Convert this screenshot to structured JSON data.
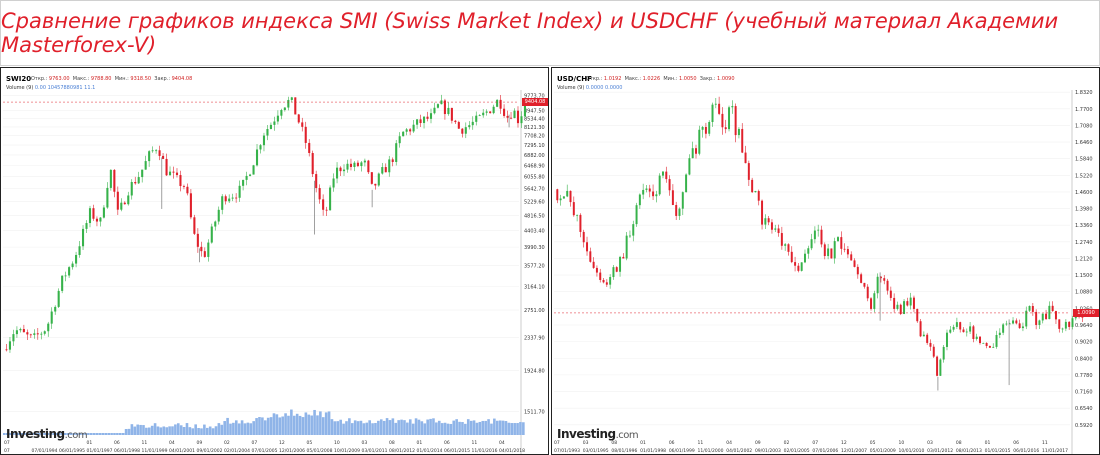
{
  "page_title": "Сравнение графиков индекса SMI (Swiss Market Index) и USDCHF (учебный материал Академии Masterforex-V)",
  "colors": {
    "title": "#e0202b",
    "up": "#36b24a",
    "down": "#e0202b",
    "volume": "#8fb4e8",
    "current_price": "#e0202b"
  },
  "logo": {
    "text": "Investing",
    "suffix": ".com"
  },
  "chart_data": [
    {
      "type": "candlestick",
      "symbol": "SWI20",
      "ohlc": {
        "open_label": "Откр.:",
        "open": "9763.00",
        "high_label": "Макс.:",
        "high": "9788.80",
        "low_label": "Мин.:",
        "low": "9318.50",
        "close_label": "Закр.:",
        "close": "9404.08"
      },
      "volume_label": "Volume (9)",
      "volume_values": "0.00   10457880981 11.1",
      "current_price": "9404.08",
      "y_scale": "log",
      "ylim": [
        1330,
        10100
      ],
      "y_ticks": [
        9773.7,
        8947.5,
        8534.4,
        8121.3,
        7708.2,
        7295.1,
        6882.0,
        6468.9,
        6055.8,
        5642.7,
        5229.6,
        4816.5,
        4403.4,
        3990.3,
        3577.2,
        3164.1,
        2751.0,
        2337.9,
        1924.8,
        1511.7
      ],
      "x_year_range": [
        1993,
        2019
      ],
      "x_tick_labels": [
        "07",
        "07/01/1994",
        "06/01/1995",
        "01/01/1997",
        "06/01/1998",
        "11/01/1999",
        "04/01/2001",
        "09/01/2002",
        "02/01/2004",
        "07/01/2005",
        "12/01/2006",
        "05/01/2008",
        "10/01/2009",
        "03/01/2011",
        "08/01/2012",
        "01/01/2014",
        "06/01/2015",
        "11/01/2016",
        "04/01/2018"
      ],
      "x_tick_top": [
        "07",
        "",
        "",
        "01",
        "06",
        "11",
        "04",
        "09",
        "02",
        "07",
        "12",
        "05",
        "10",
        "03",
        "08",
        "01",
        "06",
        "11",
        "04"
      ],
      "path": [
        [
          1993.0,
          2180
        ],
        [
          1993.6,
          2450
        ],
        [
          1994.5,
          2310
        ],
        [
          1995.2,
          2480
        ],
        [
          1996.0,
          3300
        ],
        [
          1996.6,
          3750
        ],
        [
          1997.4,
          4900
        ],
        [
          1997.9,
          4600
        ],
        [
          1998.4,
          6400
        ],
        [
          1998.8,
          4800
        ],
        [
          1999.3,
          5600
        ],
        [
          1999.9,
          6150
        ],
        [
          2000.4,
          6900
        ],
        [
          2000.8,
          7300
        ],
        [
          2001.2,
          6300
        ],
        [
          2001.8,
          5900
        ],
        [
          2002.2,
          5700
        ],
        [
          2002.6,
          4300
        ],
        [
          2003.1,
          3750
        ],
        [
          2003.6,
          4500
        ],
        [
          2004.1,
          5400
        ],
        [
          2004.6,
          5450
        ],
        [
          2005.0,
          5600
        ],
        [
          2005.6,
          6600
        ],
        [
          2006.1,
          7800
        ],
        [
          2006.6,
          8400
        ],
        [
          2007.0,
          9200
        ],
        [
          2007.5,
          9500
        ],
        [
          2007.9,
          8400
        ],
        [
          2008.3,
          7300
        ],
        [
          2008.8,
          5600
        ],
        [
          2009.2,
          4700
        ],
        [
          2009.7,
          6200
        ],
        [
          2010.2,
          6500
        ],
        [
          2010.7,
          6400
        ],
        [
          2011.2,
          6600
        ],
        [
          2011.6,
          5600
        ],
        [
          2012.1,
          6200
        ],
        [
          2012.6,
          6700
        ],
        [
          2013.1,
          7800
        ],
        [
          2013.6,
          8100
        ],
        [
          2014.1,
          8400
        ],
        [
          2014.6,
          8600
        ],
        [
          2015.0,
          9300
        ],
        [
          2015.5,
          8800
        ],
        [
          2016.0,
          8000
        ],
        [
          2016.5,
          8200
        ],
        [
          2017.0,
          8500
        ],
        [
          2017.5,
          9000
        ],
        [
          2018.0,
          9550
        ],
        [
          2018.4,
          8600
        ],
        [
          2018.7,
          9000
        ],
        [
          2019.0,
          8400
        ],
        [
          2019.3,
          9400
        ]
      ],
      "spikes": [
        [
          2008.7,
          4300
        ],
        [
          2011.6,
          5050
        ],
        [
          2002.9,
          3650
        ],
        [
          2001.0,
          5000
        ],
        [
          2018.5,
          8100
        ]
      ]
    },
    {
      "type": "candlestick",
      "symbol": "USD/CHF",
      "ohlc": {
        "open_label": "Откр.:",
        "open": "1.0192",
        "high_label": "Макс.:",
        "high": "1.0226",
        "low_label": "Мин.:",
        "low": "1.0050",
        "close_label": "Закр.:",
        "close": "1.0090"
      },
      "volume_label": "Volume (9)",
      "volume_values": "0.0000   0.0000",
      "current_price": "1.0090",
      "y_scale": "linear",
      "ylim": [
        0.58,
        1.84
      ],
      "y_ticks": [
        1.832,
        1.77,
        1.708,
        1.646,
        1.584,
        1.522,
        1.46,
        1.398,
        1.336,
        1.274,
        1.212,
        1.15,
        1.088,
        1.026,
        0.964,
        0.902,
        0.84,
        0.778,
        0.716,
        0.654,
        0.592
      ],
      "x_year_range": [
        1993,
        2018
      ],
      "x_tick_labels": [
        "07/01/1993",
        "03/01/1995",
        "08/01/1996",
        "01/01/1998",
        "06/01/1999",
        "11/01/2000",
        "04/01/2002",
        "09/01/2003",
        "02/01/2005",
        "07/01/2006",
        "12/01/2007",
        "05/01/2009",
        "10/01/2010",
        "03/01/2012",
        "08/01/2013",
        "01/01/2015",
        "06/01/2016",
        "11/01/2017"
      ],
      "x_tick_top": [
        "07",
        "03",
        "08",
        "01",
        "06",
        "11",
        "04",
        "09",
        "02",
        "07",
        "12",
        "05",
        "10",
        "03",
        "08",
        "01",
        "06",
        "11"
      ],
      "path": [
        [
          1993.0,
          1.47
        ],
        [
          1993.6,
          1.44
        ],
        [
          1994.3,
          1.32
        ],
        [
          1995.0,
          1.16
        ],
        [
          1995.5,
          1.12
        ],
        [
          1996.2,
          1.2
        ],
        [
          1996.8,
          1.34
        ],
        [
          1997.2,
          1.47
        ],
        [
          1997.7,
          1.43
        ],
        [
          1998.3,
          1.52
        ],
        [
          1998.9,
          1.36
        ],
        [
          1999.5,
          1.55
        ],
        [
          2000.0,
          1.66
        ],
        [
          2000.4,
          1.72
        ],
        [
          2000.8,
          1.8
        ],
        [
          2001.2,
          1.7
        ],
        [
          2001.6,
          1.76
        ],
        [
          2002.0,
          1.65
        ],
        [
          2002.6,
          1.48
        ],
        [
          2003.1,
          1.36
        ],
        [
          2003.7,
          1.32
        ],
        [
          2004.2,
          1.24
        ],
        [
          2004.8,
          1.15
        ],
        [
          2005.2,
          1.26
        ],
        [
          2005.8,
          1.3
        ],
        [
          2006.3,
          1.22
        ],
        [
          2006.8,
          1.27
        ],
        [
          2007.3,
          1.21
        ],
        [
          2007.9,
          1.14
        ],
        [
          2008.3,
          1.01
        ],
        [
          2008.8,
          1.16
        ],
        [
          2009.3,
          1.06
        ],
        [
          2009.8,
          1.02
        ],
        [
          2010.3,
          1.08
        ],
        [
          2010.8,
          0.93
        ],
        [
          2011.3,
          0.86
        ],
        [
          2011.6,
          0.77
        ],
        [
          2012.0,
          0.93
        ],
        [
          2012.6,
          0.96
        ],
        [
          2013.2,
          0.94
        ],
        [
          2013.7,
          0.9
        ],
        [
          2014.2,
          0.89
        ],
        [
          2014.7,
          0.95
        ],
        [
          2015.0,
          0.99
        ],
        [
          2015.5,
          0.94
        ],
        [
          2016.0,
          1.02
        ],
        [
          2016.5,
          0.97
        ],
        [
          2017.0,
          1.02
        ],
        [
          2017.5,
          0.96
        ],
        [
          2018.0,
          0.98
        ],
        [
          2018.6,
          1.0
        ]
      ],
      "spikes": [
        [
          2011.6,
          0.72
        ],
        [
          2015.05,
          0.74
        ],
        [
          2008.8,
          0.98
        ]
      ]
    }
  ]
}
